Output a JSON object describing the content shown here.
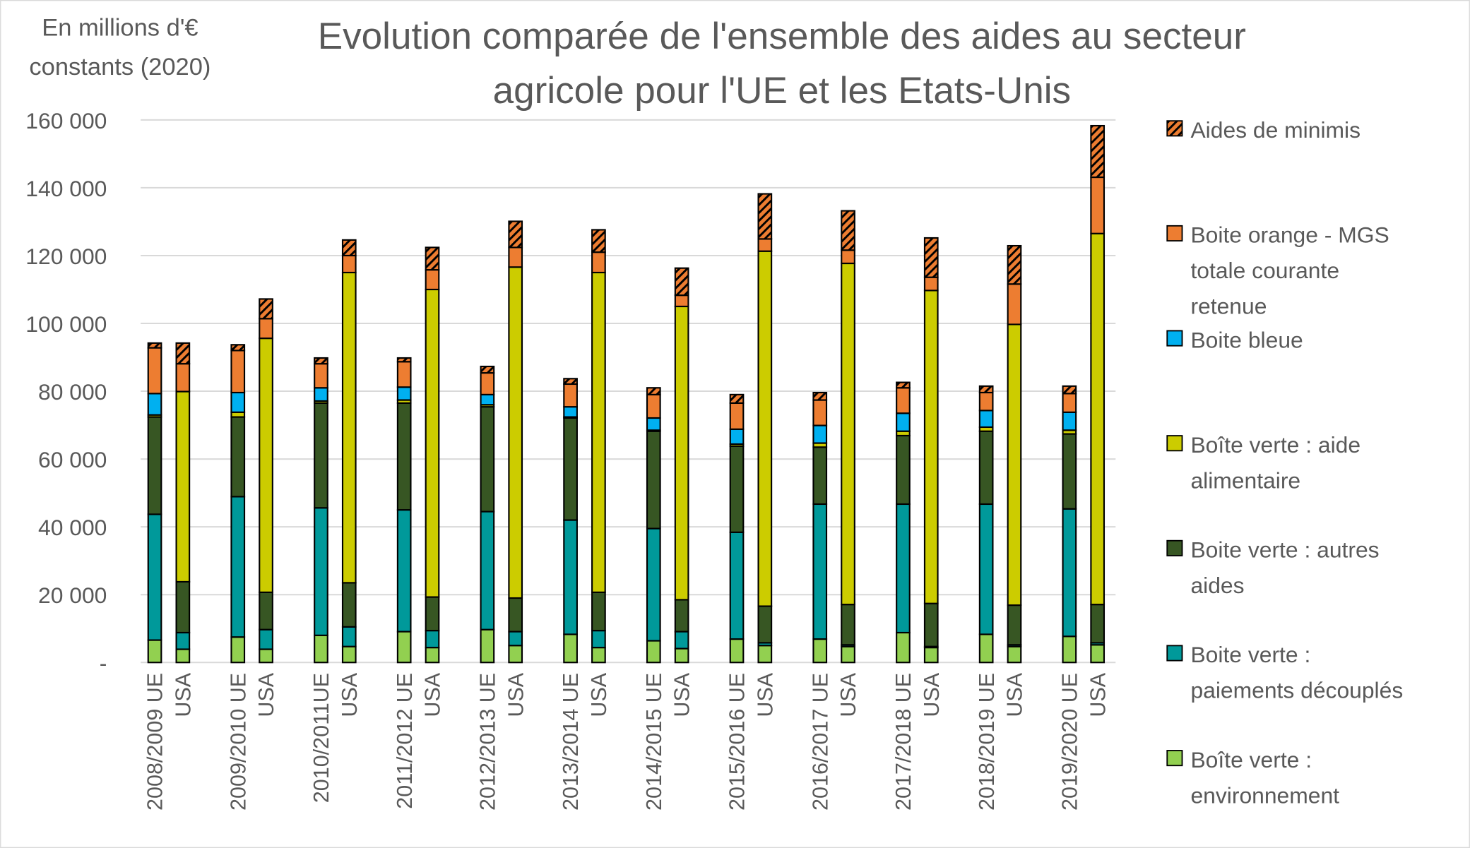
{
  "chart_data": {
    "type": "bar",
    "stacked": true,
    "title": "Evolution comparée de l'ensemble des aides au secteur agricole pour l'UE et les Etats-Unis",
    "title_lines": [
      "Evolution comparée de l'ensemble des aides au secteur",
      "agricole pour l'UE et les Etats-Unis"
    ],
    "ylabel_lines": [
      "En millions d'€",
      "constants (2020)"
    ],
    "ylim": [
      0,
      160000
    ],
    "yticks": [
      0,
      20000,
      40000,
      60000,
      80000,
      100000,
      120000,
      140000,
      160000
    ],
    "ytick_labels": [
      "-",
      "20 000",
      "40 000",
      "60 000",
      "80 000",
      "100 000",
      "120 000",
      "140 000",
      "160 000"
    ],
    "grid": true,
    "legend_position": "right",
    "groups": [
      "2008/2009",
      "2009/2010",
      "2010/2011",
      "2011/2012",
      "2012/2013",
      "2013/2014",
      "2014/2015",
      "2015/2016",
      "2016/2017",
      "2017/2018",
      "2018/2019",
      "2019/2020"
    ],
    "categories": [
      "2008/2009 UE",
      "USA",
      "2009/2010 UE",
      "USA",
      "2010/2011UE",
      "USA",
      "2011/2012 UE",
      "USA",
      "2012/2013 UE",
      "USA",
      "2013/2014 UE",
      "USA",
      "2014/2015 UE",
      "USA",
      "2015/2016 UE",
      "USA",
      "2016/2017 UE",
      "USA",
      "2017/2018 UE",
      "USA",
      "2018/2019 UE",
      "USA",
      "2019/2020 UE",
      "USA"
    ],
    "series": [
      {
        "name": "Boîte verte : environnement",
        "legend_lines": [
          "Boîte verte :",
          "environnement"
        ],
        "color": "#92D050",
        "values": [
          6600,
          3900,
          7500,
          3900,
          8000,
          4700,
          9100,
          4400,
          9700,
          5000,
          8300,
          4400,
          6400,
          4100,
          6900,
          5000,
          6900,
          4700,
          8800,
          4400,
          8300,
          4700,
          7700,
          5200
        ]
      },
      {
        "name": "Boite verte : paiements découplés",
        "legend_lines": [
          "Boite verte :",
          "paiements découplés"
        ],
        "color": "#00999A",
        "values": [
          37100,
          4900,
          41400,
          5800,
          37600,
          5800,
          35900,
          5000,
          34800,
          4100,
          33700,
          5000,
          33100,
          5000,
          31500,
          800,
          39800,
          500,
          37900,
          300,
          38400,
          500,
          37600,
          600
        ]
      },
      {
        "name": "Boite verte : autres aides",
        "legend_lines": [
          "Boite verte : autres",
          "aides"
        ],
        "color": "#375623",
        "values": [
          28700,
          15000,
          23500,
          11000,
          30900,
          13000,
          31500,
          9900,
          30900,
          9900,
          30100,
          11300,
          28700,
          9400,
          25400,
          10800,
          16800,
          11900,
          20200,
          12700,
          21500,
          11700,
          22100,
          11300
        ]
      },
      {
        "name": "Boîte verte : aide alimentaire",
        "legend_lines": [
          "Boîte verte : aide",
          "alimentaire"
        ],
        "color": "#CCCC00",
        "values": [
          600,
          56100,
          1400,
          74900,
          600,
          91500,
          900,
          90700,
          600,
          97600,
          300,
          94300,
          300,
          86500,
          600,
          104700,
          1200,
          100600,
          1300,
          92300,
          1200,
          82800,
          1100,
          109400
        ]
      },
      {
        "name": "Boite bleue",
        "legend_lines": [
          "Boite bleue"
        ],
        "color": "#00B0F0",
        "values": [
          6300,
          0,
          5800,
          0,
          3900,
          0,
          3800,
          0,
          3000,
          0,
          3000,
          0,
          3600,
          0,
          4400,
          0,
          5200,
          0,
          5300,
          0,
          4900,
          0,
          5300,
          0
        ]
      },
      {
        "name": "Boite orange - MGS totale courante retenue",
        "legend_lines": [
          "Boite orange - MGS",
          "totale courante",
          "retenue"
        ],
        "color": "#ED7D31",
        "values": [
          13500,
          8200,
          12400,
          5800,
          7100,
          5000,
          7500,
          5800,
          6400,
          5800,
          6700,
          6000,
          6900,
          3300,
          7700,
          3600,
          7500,
          3900,
          7500,
          3900,
          5300,
          11900,
          5500,
          16600
        ]
      },
      {
        "name": "Aides de minimis",
        "legend_lines": [
          "Aides de minimis"
        ],
        "color": "#ED7D31",
        "hatched": true,
        "values": [
          1400,
          6100,
          1700,
          5800,
          1700,
          4600,
          1100,
          6600,
          1900,
          7700,
          1600,
          6600,
          2000,
          8000,
          2500,
          13300,
          2200,
          11600,
          1600,
          11600,
          1900,
          11300,
          2200,
          15200
        ]
      }
    ]
  }
}
